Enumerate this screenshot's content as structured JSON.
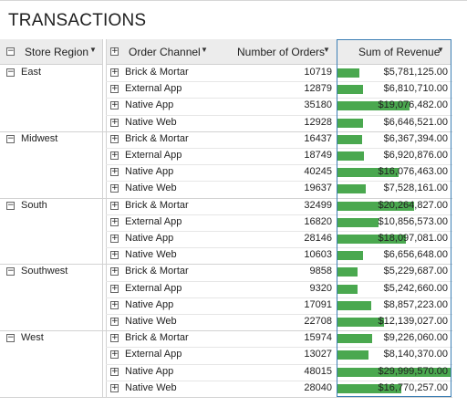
{
  "title": "TRANSACTIONS",
  "header": {
    "region": "Store Region",
    "channel": "Order Channel",
    "orders": "Number of Orders",
    "revenue": "Sum of Revenue"
  },
  "colors": {
    "bar": "#4aa84f",
    "header_bg": "#ececec",
    "selection": "#3d7fb5"
  },
  "max_revenue": 29999570,
  "groups": [
    {
      "region": "East",
      "rows": [
        {
          "channel": "Brick & Mortar",
          "orders": "10719",
          "revenue": "$5,781,125.00",
          "value": 5781125
        },
        {
          "channel": "External App",
          "orders": "12879",
          "revenue": "$6,810,710.00",
          "value": 6810710
        },
        {
          "channel": "Native App",
          "orders": "35180",
          "revenue": "$19,076,482.00",
          "value": 19076482
        },
        {
          "channel": "Native Web",
          "orders": "12928",
          "revenue": "$6,646,521.00",
          "value": 6646521
        }
      ]
    },
    {
      "region": "Midwest",
      "rows": [
        {
          "channel": "Brick & Mortar",
          "orders": "16437",
          "revenue": "$6,367,394.00",
          "value": 6367394
        },
        {
          "channel": "External App",
          "orders": "18749",
          "revenue": "$6,920,876.00",
          "value": 6920876
        },
        {
          "channel": "Native App",
          "orders": "40245",
          "revenue": "$16,076,463.00",
          "value": 16076463
        },
        {
          "channel": "Native Web",
          "orders": "19637",
          "revenue": "$7,528,161.00",
          "value": 7528161
        }
      ]
    },
    {
      "region": "South",
      "rows": [
        {
          "channel": "Brick & Mortar",
          "orders": "32499",
          "revenue": "$20,264,827.00",
          "value": 20264827
        },
        {
          "channel": "External App",
          "orders": "16820",
          "revenue": "$10,856,573.00",
          "value": 10856573
        },
        {
          "channel": "Native App",
          "orders": "28146",
          "revenue": "$18,097,081.00",
          "value": 18097081
        },
        {
          "channel": "Native Web",
          "orders": "10603",
          "revenue": "$6,656,648.00",
          "value": 6656648
        }
      ]
    },
    {
      "region": "Southwest",
      "rows": [
        {
          "channel": "Brick & Mortar",
          "orders": "9858",
          "revenue": "$5,229,687.00",
          "value": 5229687
        },
        {
          "channel": "External App",
          "orders": "9320",
          "revenue": "$5,242,660.00",
          "value": 5242660
        },
        {
          "channel": "Native App",
          "orders": "17091",
          "revenue": "$8,857,223.00",
          "value": 8857223
        },
        {
          "channel": "Native Web",
          "orders": "22708",
          "revenue": "$12,139,027.00",
          "value": 12139027
        }
      ]
    },
    {
      "region": "West",
      "rows": [
        {
          "channel": "Brick & Mortar",
          "orders": "15974",
          "revenue": "$9,226,060.00",
          "value": 9226060
        },
        {
          "channel": "External App",
          "orders": "13027",
          "revenue": "$8,140,370.00",
          "value": 8140370
        },
        {
          "channel": "Native App",
          "orders": "48015",
          "revenue": "$29,999,570.00",
          "value": 29999570
        },
        {
          "channel": "Native Web",
          "orders": "28040",
          "revenue": "$16,770,257.00",
          "value": 16770257
        }
      ]
    }
  ]
}
